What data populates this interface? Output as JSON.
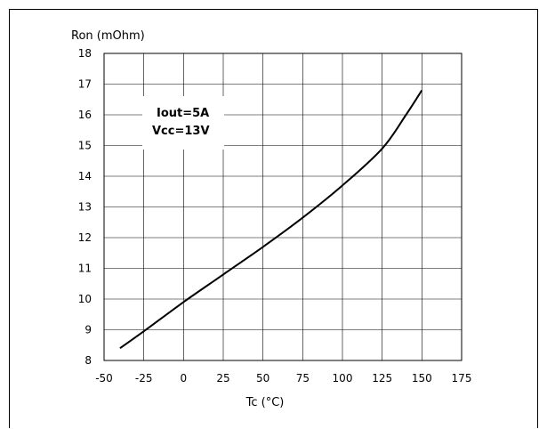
{
  "chart_data": {
    "type": "line",
    "title": "",
    "xlabel": "Tc (°C)",
    "ylabel": "Ron (mOhm)",
    "xlim": [
      -50,
      175
    ],
    "ylim": [
      8,
      18
    ],
    "xticks": [
      -50,
      -25,
      0,
      25,
      50,
      75,
      100,
      125,
      150,
      175
    ],
    "yticks": [
      8,
      9,
      10,
      11,
      12,
      13,
      14,
      15,
      16,
      17,
      18
    ],
    "grid": true,
    "annotation": [
      "Iout=5A",
      "Vcc=13V"
    ],
    "series": [
      {
        "x": [
          -40,
          -25,
          0,
          25,
          50,
          75,
          100,
          125,
          140,
          150
        ],
        "y": [
          8.4,
          8.95,
          9.9,
          10.8,
          11.7,
          12.65,
          13.7,
          14.9,
          16.0,
          16.8
        ]
      }
    ]
  },
  "colors": {
    "line": "#000000",
    "grid": "#000000",
    "axis": "#000000"
  }
}
